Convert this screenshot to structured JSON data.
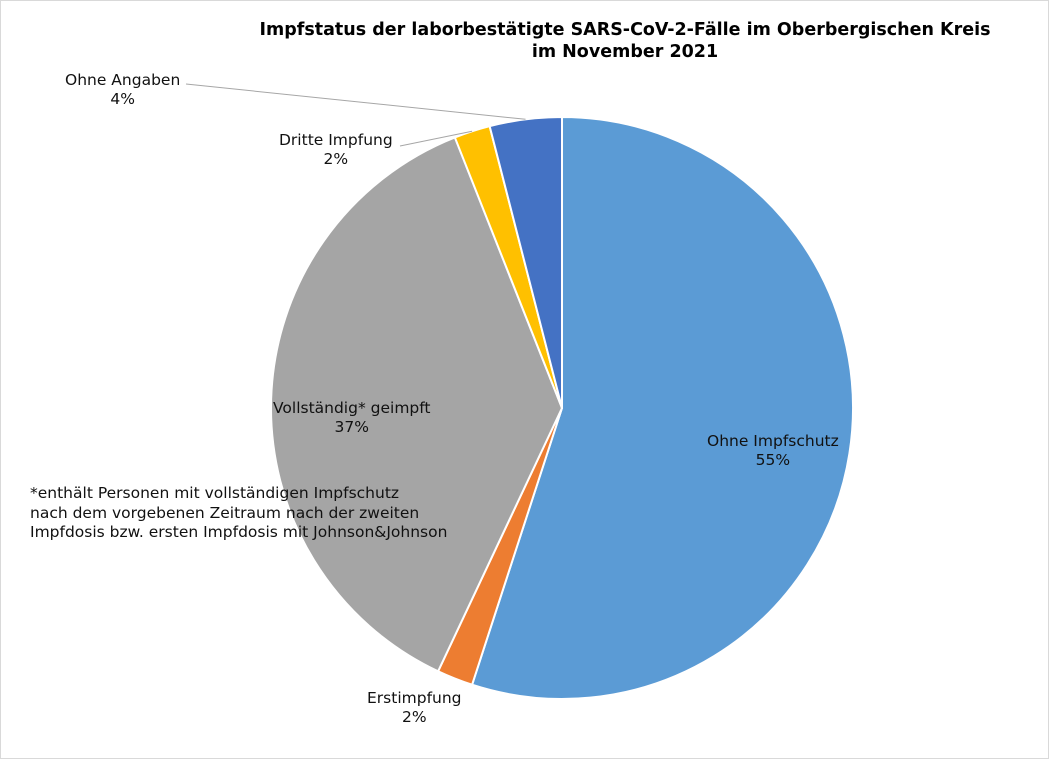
{
  "chart_data": {
    "type": "pie",
    "title_lines": [
      "Impfstatus der laborbestätigte SARS-CoV-2-Fälle im Oberbergischen Kreis",
      "im November 2021"
    ],
    "slices": [
      {
        "label": "Ohne Impfschutz",
        "value": 55,
        "value_label": "55%",
        "color": "#5B9BD5"
      },
      {
        "label": "Erstimpfung",
        "value": 2,
        "value_label": "2%",
        "color": "#ED7D31"
      },
      {
        "label": "Vollständig* geimpft",
        "value": 37,
        "value_label": "37%",
        "color": "#A5A5A5"
      },
      {
        "label": "Dritte Impfung",
        "value": 2,
        "value_label": "2%",
        "color": "#FFC000"
      },
      {
        "label": "Ohne Angaben",
        "value": 4,
        "value_label": "4%",
        "color": "#4472C4"
      }
    ],
    "start_angle": "12 o'clock",
    "direction": "clockwise",
    "legend": "none",
    "footnote_lines": [
      "*enthält Personen mit vollständigen Impfschutz",
      "nach dem vorgebenen Zeitraum nach der zweiten",
      "Impfdosis bzw. ersten Impfdosis mit Johnson&Johnson"
    ]
  }
}
